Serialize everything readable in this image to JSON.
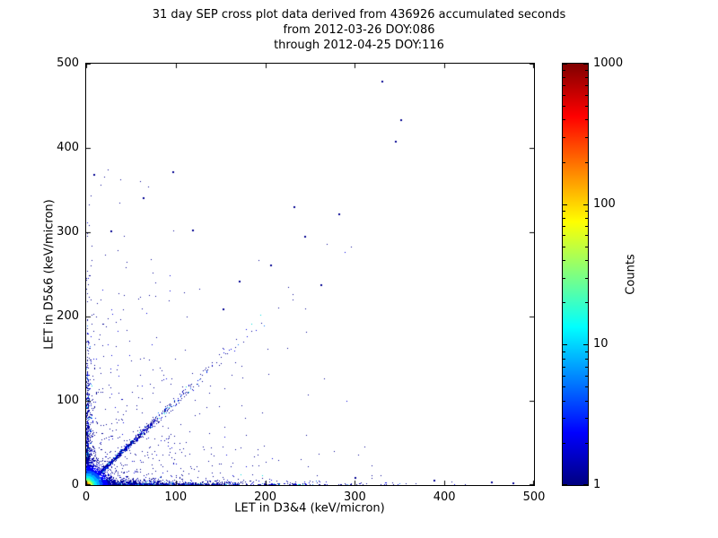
{
  "chart_data": {
    "type": "scatter",
    "title_lines": [
      "31 day SEP cross plot data derived from 436926 accumulated seconds",
      "from 2012-03-26 DOY:086",
      "through 2012-04-25 DOY:116"
    ],
    "xlabel": "LET in D3&4 (keV/micron)",
    "ylabel": "LET in D5&6 (keV/micron)",
    "xlim": [
      0,
      500
    ],
    "ylim": [
      0,
      500
    ],
    "xticks": [
      0,
      100,
      200,
      300,
      400,
      500
    ],
    "yticks": [
      0,
      100,
      200,
      300,
      400,
      500
    ],
    "grid": false,
    "legend": "none",
    "colorbar": {
      "label": "Counts",
      "scale": "log",
      "min": 1,
      "max": 1000,
      "ticks": [
        1,
        10,
        100,
        1000
      ],
      "colormap": "jet",
      "gradient_stops": [
        {
          "pos": 0.0,
          "color": "#000080"
        },
        {
          "pos": 0.125,
          "color": "#0000ff"
        },
        {
          "pos": 0.375,
          "color": "#00ffff"
        },
        {
          "pos": 0.625,
          "color": "#ffff00"
        },
        {
          "pos": 0.875,
          "color": "#ff0000"
        },
        {
          "pos": 1.0,
          "color": "#800000"
        }
      ]
    },
    "point_color_low": "#000090",
    "background": "#ffffff",
    "random_seed": 42,
    "clusters": [
      {
        "name": "sparse-fan",
        "type": "xy",
        "count": 420,
        "size": 1,
        "x": {
          "dist": "exp",
          "scale": 85,
          "min": 0,
          "max": 330
        },
        "y": {
          "dist": "exp",
          "scale": 60,
          "min": 0,
          "max": 280
        },
        "palette": [
          [
            "#000090",
            0.85
          ],
          [
            "#0000d8",
            0.15
          ]
        ]
      },
      {
        "name": "left-sparse",
        "type": "xy",
        "count": 70,
        "size": 1,
        "x": {
          "dist": "exp",
          "scale": 28,
          "min": 0,
          "max": 140
        },
        "y": {
          "dist": "uniform",
          "min": 40,
          "max": 375
        },
        "palette": [
          [
            "#000090",
            0.9
          ],
          [
            "#0000d8",
            0.1
          ]
        ]
      },
      {
        "name": "x-axis-band",
        "type": "xy",
        "count": 1800,
        "size": 1,
        "x": {
          "dist": "exp",
          "scale": 70,
          "min": 0,
          "max": 485
        },
        "y": {
          "dist": "exp",
          "scale": 2.2,
          "min": 0,
          "max": 25
        },
        "palette": [
          [
            "#000090",
            0.7
          ],
          [
            "#0000e0",
            0.2
          ],
          [
            "#0070ff",
            0.07
          ],
          [
            "#00dcdc",
            0.03
          ]
        ]
      },
      {
        "name": "y-axis-band",
        "type": "xy",
        "count": 850,
        "size": 1,
        "x": {
          "dist": "exp",
          "scale": 2.2,
          "min": 0,
          "max": 25
        },
        "y": {
          "dist": "exp",
          "scale": 55,
          "min": 0,
          "max": 310
        },
        "palette": [
          [
            "#000090",
            0.7
          ],
          [
            "#0000e0",
            0.2
          ],
          [
            "#0070ff",
            0.07
          ],
          [
            "#00dcdc",
            0.03
          ]
        ]
      },
      {
        "name": "diagonal-band",
        "type": "diag",
        "count": 1100,
        "size": 1,
        "t": {
          "dist": "exp",
          "scale": 40,
          "min": 3,
          "max": 305
        },
        "jitter_base": 1.2,
        "jitter_frac": 0.045,
        "palette": [
          [
            "#000090",
            0.6
          ],
          [
            "#0000e0",
            0.25
          ],
          [
            "#0070ff",
            0.1
          ],
          [
            "#00dcdc",
            0.05
          ]
        ]
      },
      {
        "name": "origin-core",
        "type": "xy",
        "count": 3500,
        "size": 1,
        "x": {
          "dist": "exp",
          "scale": 7,
          "min": 0,
          "max": 70
        },
        "y": {
          "dist": "exp",
          "scale": 7,
          "min": 0,
          "max": 70
        },
        "color_mode": "radial",
        "radial_stops": [
          [
            1.5,
            "#8b0000"
          ],
          [
            2.3,
            "#e00000"
          ],
          [
            3.2,
            "#ff6a00"
          ],
          [
            4.2,
            "#ffc800"
          ],
          [
            5.5,
            "#f0ff30"
          ],
          [
            7,
            "#90ff60"
          ],
          [
            9,
            "#30ffb0"
          ],
          [
            11.5,
            "#00e5ff"
          ],
          [
            14.5,
            "#00aaff"
          ],
          [
            18,
            "#0055ff"
          ],
          [
            23,
            "#0000ff"
          ],
          [
            30,
            "#0000c0"
          ],
          [
            9999,
            "#000090"
          ]
        ]
      }
    ],
    "outlier_points": [
      [
        330,
        480
      ],
      [
        351,
        434
      ],
      [
        345,
        409
      ],
      [
        282,
        322
      ],
      [
        231,
        331
      ],
      [
        243,
        296
      ],
      [
        96,
        372
      ],
      [
        63,
        341
      ],
      [
        118,
        303
      ],
      [
        27,
        302
      ],
      [
        8,
        369
      ],
      [
        170,
        243
      ],
      [
        205,
        262
      ],
      [
        152,
        210
      ],
      [
        262,
        238
      ],
      [
        300,
        10
      ],
      [
        388,
        6
      ],
      [
        452,
        4
      ],
      [
        476,
        3
      ]
    ]
  }
}
